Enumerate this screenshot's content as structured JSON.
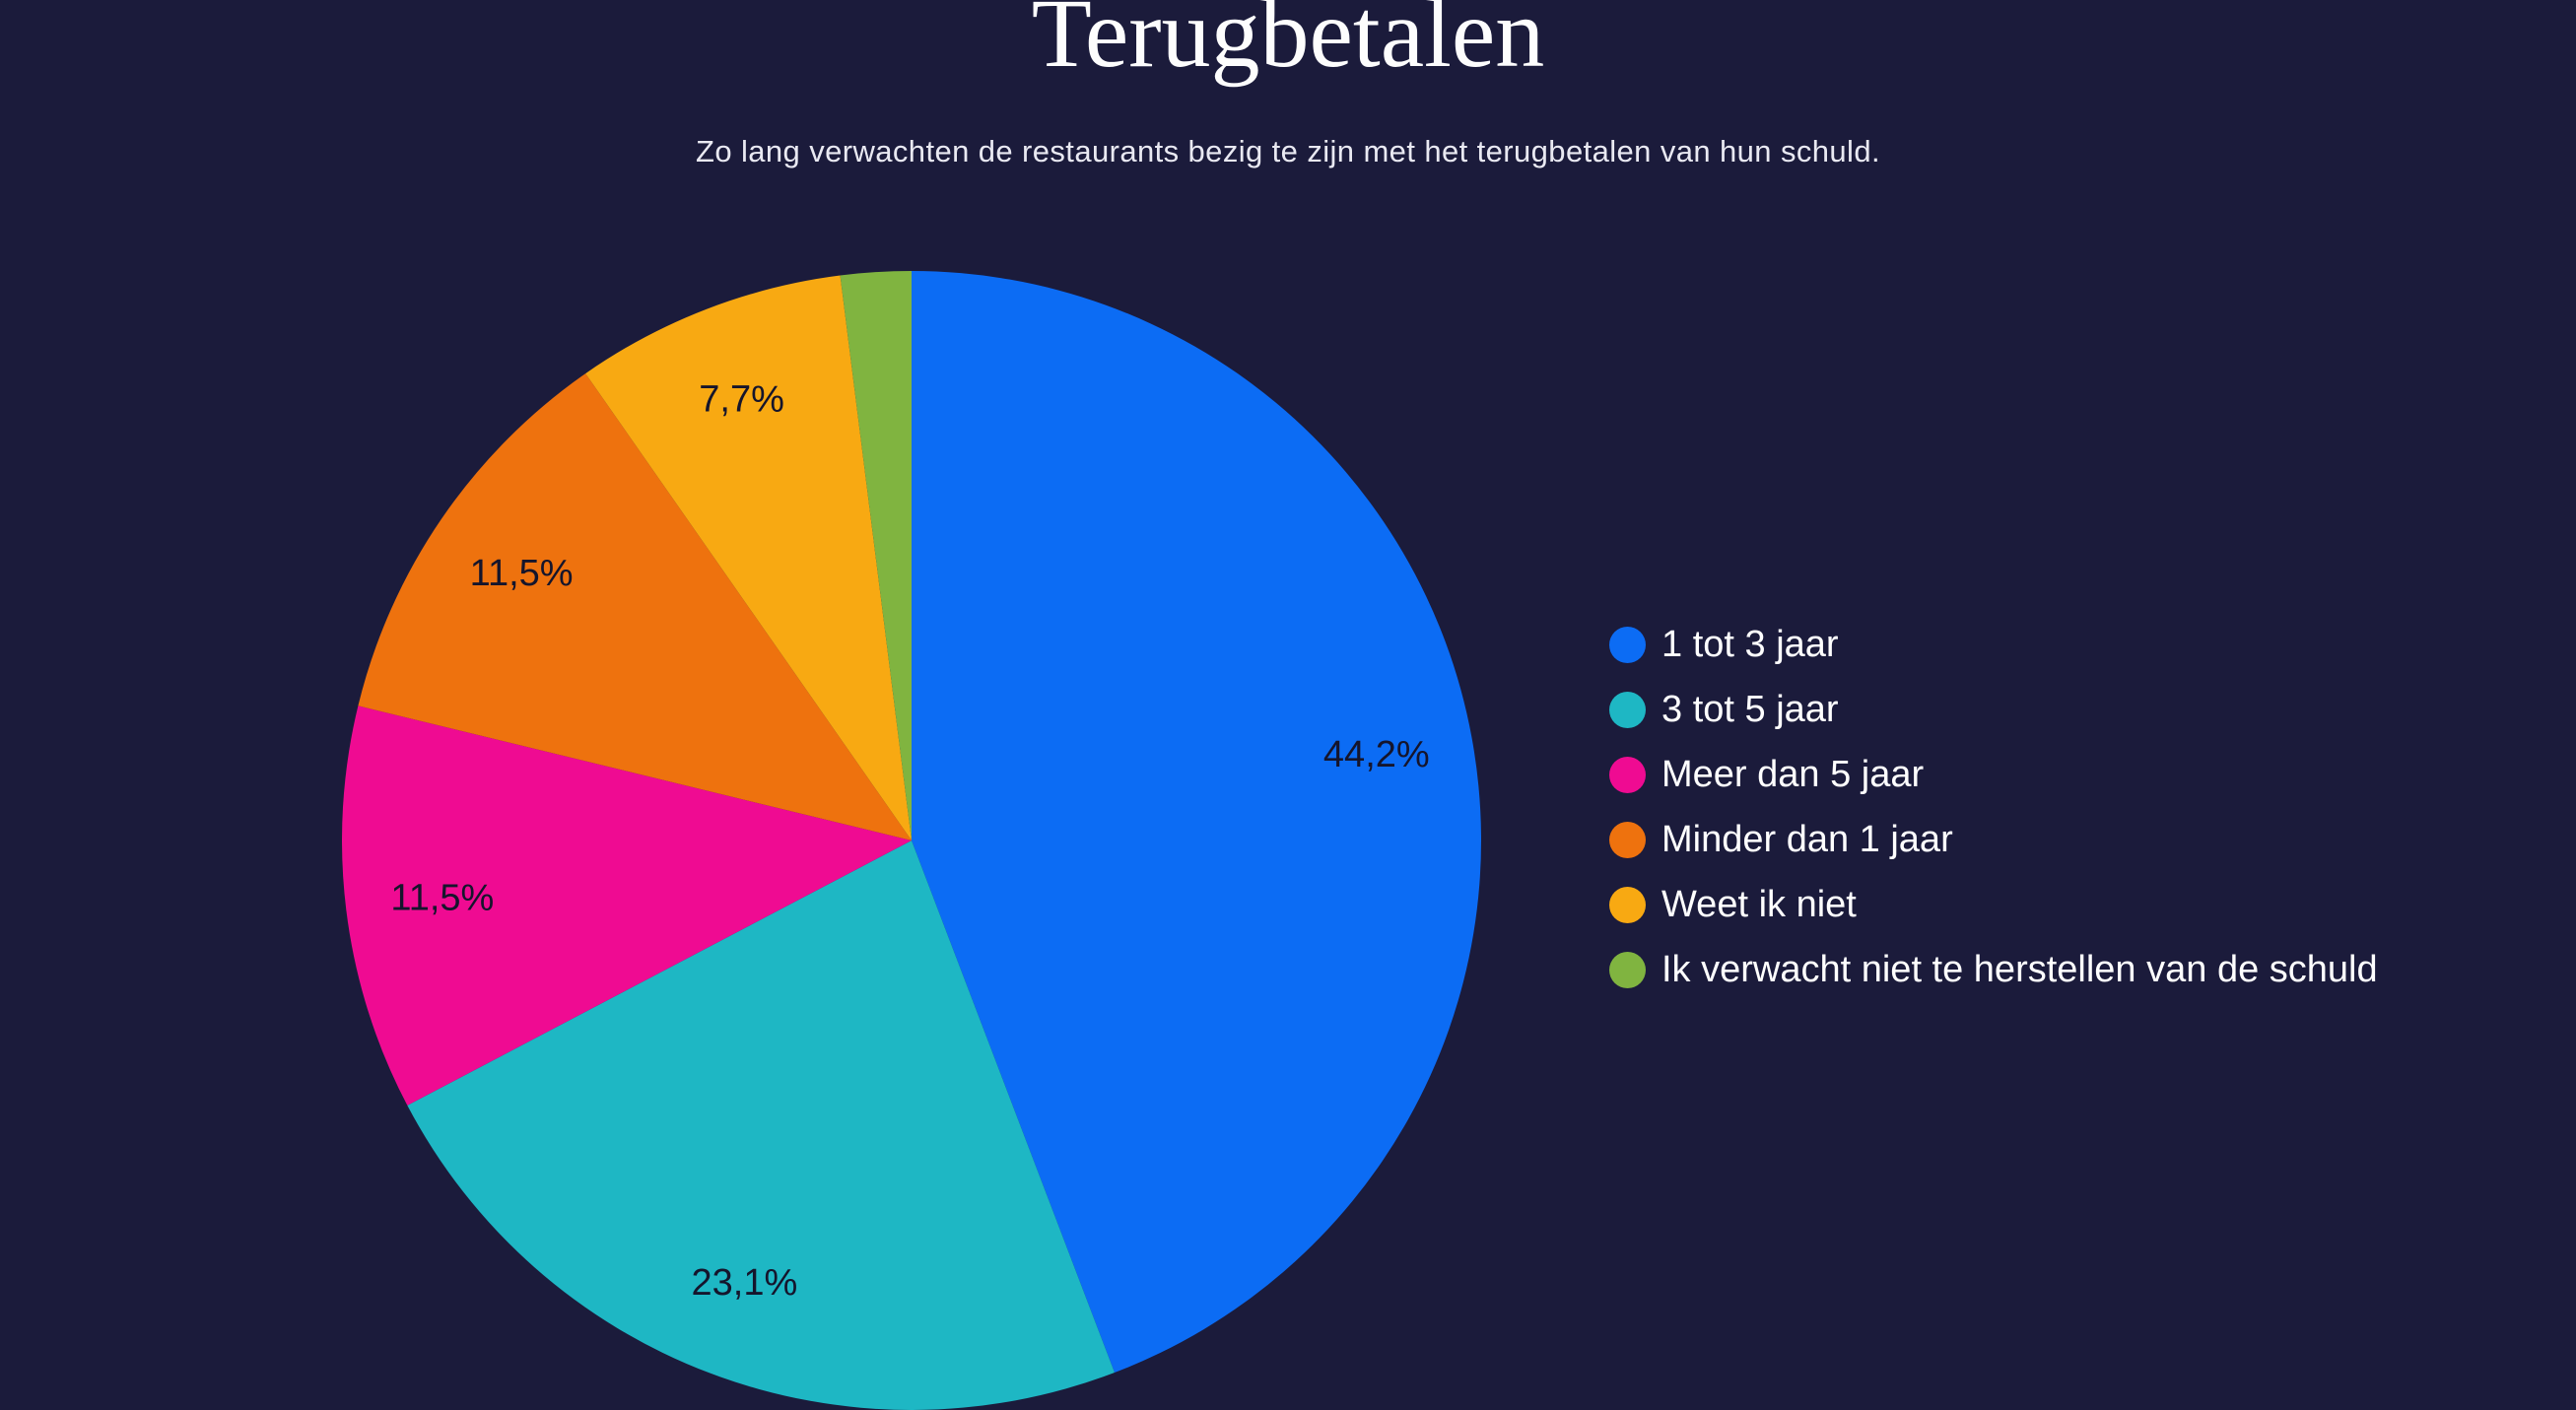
{
  "page": {
    "background_color": "#1b1b3b"
  },
  "chart_data": {
    "type": "pie",
    "title": "Terugbetalen",
    "subtitle": "Zo lang verwachten de restaurants bezig te zijn met het terugbetalen van hun schuld.",
    "unit": "%",
    "decimal_separator": ",",
    "start_angle_deg": 0,
    "direction": "clockwise",
    "legend_position": "right",
    "label_radius_fraction": 0.83,
    "value_label_color": "#15152c",
    "slices": [
      {
        "label": "1 tot 3 jaar",
        "value": 44.2,
        "display": "44,2%",
        "color": "#0c6cf4",
        "show_label": true
      },
      {
        "label": "3 tot 5 jaar",
        "value": 23.1,
        "display": "23,1%",
        "color": "#1eb7c4",
        "show_label": true
      },
      {
        "label": "Meer dan 5 jaar",
        "value": 11.5,
        "display": "11,5%",
        "color": "#ef0b92",
        "show_label": true
      },
      {
        "label": "Minder dan 1 jaar",
        "value": 11.5,
        "display": "11,5%",
        "color": "#ee720e",
        "show_label": true
      },
      {
        "label": "Weet ik niet",
        "value": 7.7,
        "display": "7,7%",
        "color": "#f8a912",
        "show_label": true
      },
      {
        "label": "Ik verwacht niet te herstellen van de schuld",
        "value": 2.0,
        "display": "",
        "color": "#80b440",
        "show_label": false
      }
    ]
  }
}
